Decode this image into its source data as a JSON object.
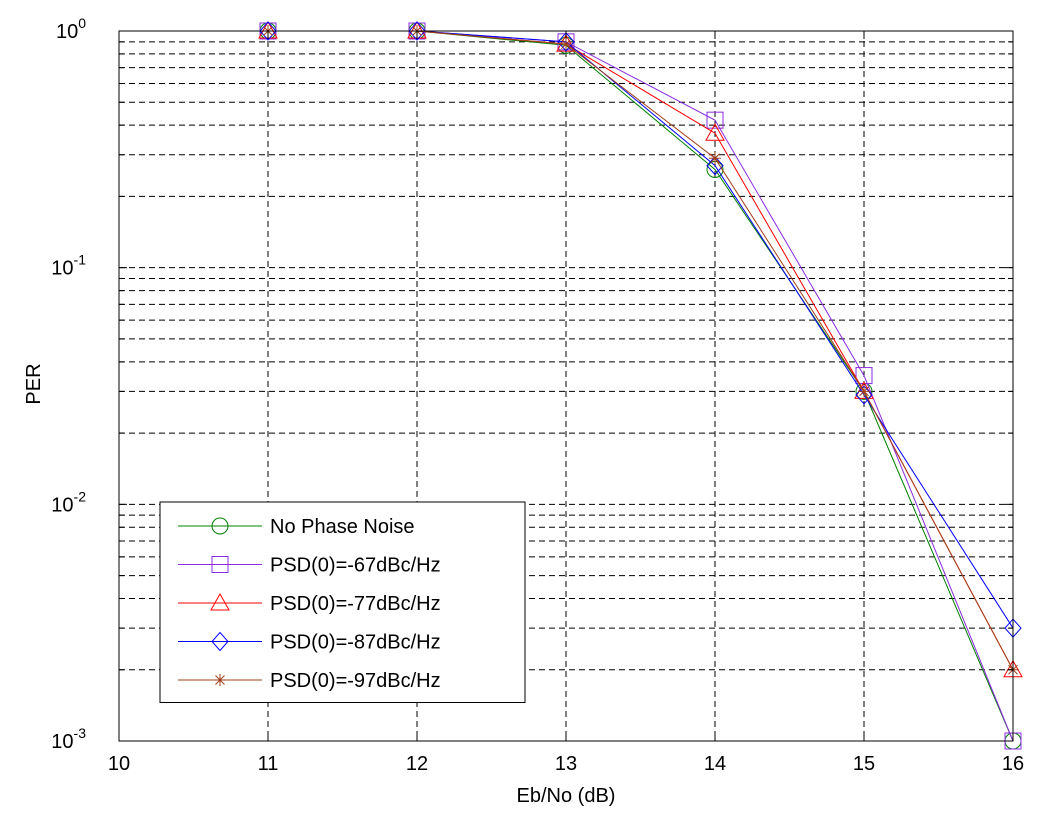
{
  "chart_data": {
    "type": "line",
    "title": "",
    "xlabel": "Eb/No (dB)",
    "ylabel": "PER",
    "xlim": [
      10,
      16
    ],
    "ylim": [
      0.001,
      1
    ],
    "yscale": "log",
    "grid": true,
    "grid_style": "dashed",
    "legend_position": "bottom-left",
    "x_ticks": [
      {
        "value": 10,
        "label": "10"
      },
      {
        "value": 11,
        "label": "11"
      },
      {
        "value": 12,
        "label": "12"
      },
      {
        "value": 13,
        "label": "13"
      },
      {
        "value": 14,
        "label": "14"
      },
      {
        "value": 15,
        "label": "15"
      },
      {
        "value": 16,
        "label": "16"
      }
    ],
    "y_ticks": [
      {
        "value": 1,
        "base": "10",
        "exp": "0"
      },
      {
        "value": 0.1,
        "base": "10",
        "exp": "-1"
      },
      {
        "value": 0.01,
        "base": "10",
        "exp": "-2"
      },
      {
        "value": 0.001,
        "base": "10",
        "exp": "-3"
      }
    ],
    "series": [
      {
        "name": "No Phase Noise",
        "color": "#008000",
        "marker": "circle",
        "x": [
          11,
          12,
          13,
          14,
          15,
          16
        ],
        "y": [
          1,
          1,
          0.87,
          0.26,
          0.03,
          0.001
        ]
      },
      {
        "name": "PSD(0)=-67dBc/Hz",
        "color": "#8B2BE2",
        "marker": "square",
        "x": [
          11,
          12,
          13,
          14,
          15,
          16
        ],
        "y": [
          1,
          1,
          0.9,
          0.42,
          0.035,
          0.001
        ]
      },
      {
        "name": "PSD(0)=-77dBc/Hz",
        "color": "#FF0000",
        "marker": "triangle",
        "x": [
          11,
          12,
          13,
          14,
          15,
          16
        ],
        "y": [
          1,
          1,
          0.88,
          0.37,
          0.03,
          0.002
        ]
      },
      {
        "name": "PSD(0)=-87dBc/Hz",
        "color": "#0000FF",
        "marker": "diamond",
        "x": [
          11,
          12,
          13,
          14,
          15,
          16
        ],
        "y": [
          1,
          1,
          0.9,
          0.27,
          0.029,
          0.003
        ]
      },
      {
        "name": "PSD(0)=-97dBc/Hz",
        "color": "#A0401A",
        "marker": "asterisk",
        "x": [
          11,
          12,
          13,
          14,
          15,
          16
        ],
        "y": [
          1,
          1,
          0.88,
          0.29,
          0.03,
          0.002
        ]
      }
    ]
  }
}
